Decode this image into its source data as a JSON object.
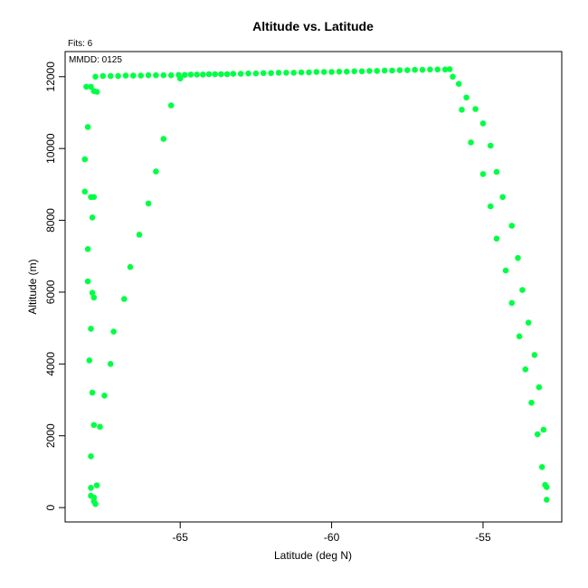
{
  "chart_data": {
    "type": "scatter",
    "title": "Altitude vs. Latitude",
    "xlabel": "Latitude (deg N)",
    "ylabel": "Altitude (m)",
    "annotations": {
      "fits": "Fits: 6",
      "mmdd": "MMDD: 0125"
    },
    "xlim": [
      -68.8,
      -52.4
    ],
    "ylim": [
      -400,
      12700
    ],
    "x_ticks": [
      -65,
      -60,
      -55
    ],
    "x_tick_labels": [
      "-65",
      "-60",
      "-55"
    ],
    "y_ticks": [
      0,
      2000,
      4000,
      6000,
      8000,
      10000,
      12000
    ],
    "y_tick_labels": [
      "0",
      "2000",
      "4000",
      "6000",
      "8000",
      "10000",
      "12000"
    ],
    "grid": false,
    "marker_color": "#00ff44",
    "points": [
      [
        -68.1,
        11720
      ],
      [
        -67.95,
        11720
      ],
      [
        -67.85,
        11600
      ],
      [
        -67.75,
        11580
      ],
      [
        -67.8,
        12000
      ],
      [
        -67.55,
        12020
      ],
      [
        -67.3,
        12020
      ],
      [
        -67.05,
        12020
      ],
      [
        -66.8,
        12030
      ],
      [
        -66.55,
        12030
      ],
      [
        -66.3,
        12030
      ],
      [
        -66.05,
        12040
      ],
      [
        -65.8,
        12040
      ],
      [
        -65.55,
        12040
      ],
      [
        -65.3,
        12040
      ],
      [
        -65.05,
        12050
      ],
      [
        -64.85,
        12050
      ],
      [
        -64.65,
        12060
      ],
      [
        -64.45,
        12060
      ],
      [
        -64.25,
        12060
      ],
      [
        -64.05,
        12070
      ],
      [
        -63.85,
        12070
      ],
      [
        -63.65,
        12070
      ],
      [
        -63.45,
        12070
      ],
      [
        -63.25,
        12080
      ],
      [
        -63.0,
        12080
      ],
      [
        -62.75,
        12090
      ],
      [
        -62.5,
        12090
      ],
      [
        -62.25,
        12100
      ],
      [
        -62.0,
        12100
      ],
      [
        -61.75,
        12110
      ],
      [
        -61.5,
        12110
      ],
      [
        -61.25,
        12110
      ],
      [
        -61.0,
        12120
      ],
      [
        -60.75,
        12120
      ],
      [
        -60.5,
        12130
      ],
      [
        -60.25,
        12130
      ],
      [
        -60.0,
        12130
      ],
      [
        -59.75,
        12140
      ],
      [
        -59.5,
        12140
      ],
      [
        -59.25,
        12150
      ],
      [
        -59.0,
        12150
      ],
      [
        -58.75,
        12160
      ],
      [
        -58.5,
        12160
      ],
      [
        -58.25,
        12170
      ],
      [
        -58.0,
        12170
      ],
      [
        -57.75,
        12180
      ],
      [
        -57.5,
        12180
      ],
      [
        -57.25,
        12190
      ],
      [
        -57.0,
        12190
      ],
      [
        -56.75,
        12200
      ],
      [
        -56.5,
        12200
      ],
      [
        -56.25,
        12200
      ],
      [
        -56.1,
        12210
      ],
      [
        -65.0,
        11950
      ],
      [
        -65.3,
        11200
      ],
      [
        -65.55,
        10270
      ],
      [
        -65.8,
        9360
      ],
      [
        -66.05,
        8470
      ],
      [
        -66.35,
        7600
      ],
      [
        -66.65,
        6700
      ],
      [
        -66.85,
        5810
      ],
      [
        -67.2,
        4900
      ],
      [
        -67.3,
        4000
      ],
      [
        -67.5,
        3120
      ],
      [
        -67.65,
        2250
      ],
      [
        -67.75,
        620
      ],
      [
        -68.05,
        10600
      ],
      [
        -68.15,
        9700
      ],
      [
        -68.15,
        8800
      ],
      [
        -67.95,
        8650
      ],
      [
        -67.85,
        8650
      ],
      [
        -67.9,
        8080
      ],
      [
        -68.05,
        7200
      ],
      [
        -68.05,
        6300
      ],
      [
        -67.9,
        5980
      ],
      [
        -67.85,
        5850
      ],
      [
        -67.95,
        4980
      ],
      [
        -68.0,
        4100
      ],
      [
        -67.9,
        3200
      ],
      [
        -67.85,
        2300
      ],
      [
        -67.95,
        1430
      ],
      [
        -67.95,
        550
      ],
      [
        -67.95,
        330
      ],
      [
        -67.85,
        280
      ],
      [
        -67.85,
        180
      ],
      [
        -67.8,
        100
      ],
      [
        -56.0,
        12000
      ],
      [
        -55.8,
        11800
      ],
      [
        -55.55,
        11420
      ],
      [
        -55.7,
        11080
      ],
      [
        -55.25,
        11100
      ],
      [
        -55.0,
        10700
      ],
      [
        -55.4,
        10170
      ],
      [
        -54.75,
        10080
      ],
      [
        -55.0,
        9290
      ],
      [
        -54.55,
        9350
      ],
      [
        -54.35,
        8650
      ],
      [
        -54.75,
        8390
      ],
      [
        -54.05,
        7850
      ],
      [
        -54.55,
        7490
      ],
      [
        -53.85,
        6950
      ],
      [
        -54.25,
        6600
      ],
      [
        -53.7,
        6060
      ],
      [
        -54.05,
        5700
      ],
      [
        -53.5,
        5150
      ],
      [
        -53.8,
        4770
      ],
      [
        -53.3,
        4250
      ],
      [
        -53.6,
        3850
      ],
      [
        -53.15,
        3350
      ],
      [
        -53.4,
        2920
      ],
      [
        -53.0,
        2170
      ],
      [
        -53.2,
        2040
      ],
      [
        -53.05,
        1130
      ],
      [
        -52.95,
        630
      ],
      [
        -52.9,
        570
      ],
      [
        -52.9,
        220
      ]
    ]
  }
}
